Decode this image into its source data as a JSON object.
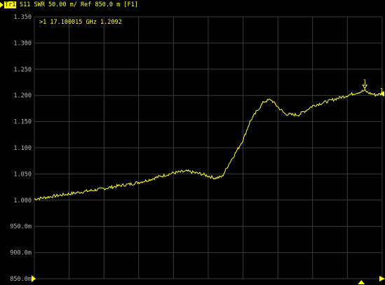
{
  "header": {
    "trace_id": "Tr1",
    "trace_text": "S11 SWR 50.00 m/ Ref 850.0 m [F1]"
  },
  "marker_readout": {
    "text": ">1  17.100015 GHz  1.2092"
  },
  "colors": {
    "background": "#000000",
    "grid": "#3a3a3a",
    "trace": "#ffff3c",
    "axis_label": "#b8b8b8",
    "header_text": "#ffff3c"
  },
  "chart_data": {
    "type": "line",
    "title": "",
    "xlabel": "",
    "ylabel": "",
    "ylim": [
      0.85,
      1.35
    ],
    "xlim": [
      0,
      100
    ],
    "grid": true,
    "y_ticks": [
      {
        "value": 1.35,
        "label": "1.350"
      },
      {
        "value": 1.3,
        "label": "1.300"
      },
      {
        "value": 1.25,
        "label": "1.250"
      },
      {
        "value": 1.2,
        "label": "1.200"
      },
      {
        "value": 1.15,
        "label": "1.150"
      },
      {
        "value": 1.1,
        "label": "1.100"
      },
      {
        "value": 1.05,
        "label": "1.050"
      },
      {
        "value": 1.0,
        "label": "1.000"
      },
      {
        "value": 0.95,
        "label": "950.0m"
      },
      {
        "value": 0.9,
        "label": "900.0m"
      },
      {
        "value": 0.85,
        "label": "850.0m"
      }
    ],
    "series": [
      {
        "x": [
          0,
          4,
          8,
          12,
          16,
          20,
          24,
          28,
          32,
          36,
          40,
          44,
          48,
          50,
          52,
          54,
          56,
          58,
          60,
          62,
          64,
          66,
          68,
          70,
          72,
          74,
          76,
          78,
          80,
          84,
          88,
          92,
          95,
          96,
          98,
          100
        ],
        "values": [
          1.002,
          1.006,
          1.01,
          1.014,
          1.018,
          1.022,
          1.027,
          1.031,
          1.037,
          1.045,
          1.052,
          1.055,
          1.05,
          1.046,
          1.042,
          1.045,
          1.07,
          1.092,
          1.115,
          1.15,
          1.17,
          1.188,
          1.192,
          1.178,
          1.165,
          1.163,
          1.163,
          1.171,
          1.18,
          1.188,
          1.196,
          1.204,
          1.209,
          1.205,
          1.201,
          1.203
        ]
      }
    ],
    "markers": [
      {
        "label": "1",
        "x": 95,
        "value": 1.2092
      }
    ],
    "end_marker": {
      "label": "1"
    }
  }
}
